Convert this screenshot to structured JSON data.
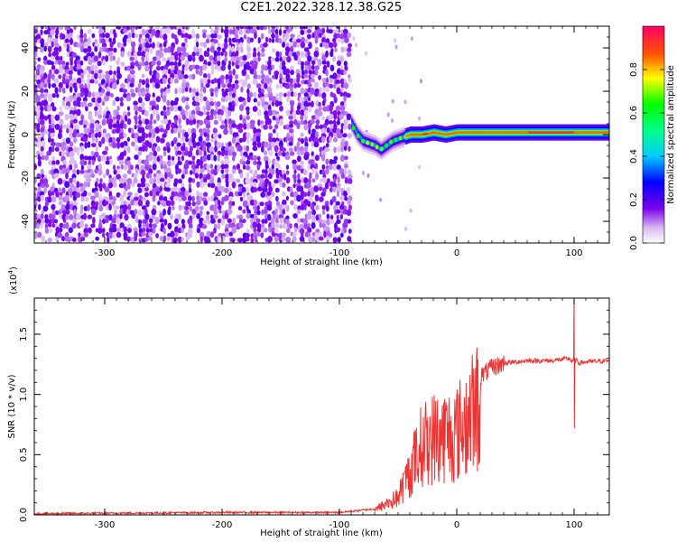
{
  "title": "C2E1.2022.328.12.38.G25",
  "chart_data": [
    {
      "type": "heatmap",
      "title": "",
      "xlabel": "Height of straight line (km)",
      "ylabel": "Frequency (Hz)",
      "xlim": [
        -360,
        130
      ],
      "ylim": [
        -50,
        50
      ],
      "xticks": [
        "-300",
        "-200",
        "-100",
        "0",
        "100"
      ],
      "yticks": [
        "-40",
        "-20",
        "0",
        "20",
        "40"
      ],
      "grid": false,
      "description_of_values": {
        "noise_region_x": [
          -360,
          -92
        ],
        "carrier_track": [
          {
            "x": -90,
            "y": 5
          },
          {
            "x": -85,
            "y": 0
          },
          {
            "x": -80,
            "y": -3
          },
          {
            "x": -75,
            "y": -4
          },
          {
            "x": -70,
            "y": -5
          },
          {
            "x": -65,
            "y": -7
          },
          {
            "x": -60,
            "y": -5
          },
          {
            "x": -55,
            "y": -3
          },
          {
            "x": -50,
            "y": -2
          },
          {
            "x": -45,
            "y": -1
          },
          {
            "x": -40,
            "y": 0
          },
          {
            "x": -30,
            "y": 0
          },
          {
            "x": -20,
            "y": 1
          },
          {
            "x": -10,
            "y": 0
          },
          {
            "x": 0,
            "y": 1
          },
          {
            "x": 20,
            "y": 1
          },
          {
            "x": 40,
            "y": 1
          },
          {
            "x": 60,
            "y": 1
          },
          {
            "x": 80,
            "y": 1
          },
          {
            "x": 100,
            "y": 1
          },
          {
            "x": 130,
            "y": 1
          }
        ]
      },
      "colorbar": {
        "label": "Normalized spectral amplitude",
        "range": [
          0,
          1
        ],
        "ticks": [
          "0.0",
          "0.2",
          "0.4",
          "0.6",
          "0.8"
        ]
      }
    },
    {
      "type": "line",
      "title": "",
      "xlabel": "Height of straight line (km)",
      "ylabel": "SNR (10 * v/v)",
      "yscale_note": "(x10",
      "yscale_exp": "4",
      "yscale_close": ")",
      "xlim": [
        -360,
        130
      ],
      "ylim": [
        0,
        1.8
      ],
      "xticks": [
        "-300",
        "-200",
        "-100",
        "0",
        "100"
      ],
      "yticks": [
        "0.0",
        "0.5",
        "1.0",
        "1.5"
      ],
      "grid": false,
      "color": "#ee3333",
      "series": [
        {
          "x": [
            -360,
            -200,
            -100,
            -70,
            -50,
            -40,
            -30,
            -20,
            -10,
            0,
            10,
            20,
            30,
            40,
            60,
            80,
            98,
            100,
            102,
            110,
            130
          ],
          "y": [
            0.01,
            0.02,
            0.02,
            0.05,
            0.18,
            0.45,
            0.72,
            0.8,
            0.82,
            0.85,
            1.0,
            1.15,
            1.22,
            1.26,
            1.28,
            1.28,
            1.3,
            1.75,
            1.26,
            1.27,
            1.28
          ]
        }
      ]
    }
  ]
}
